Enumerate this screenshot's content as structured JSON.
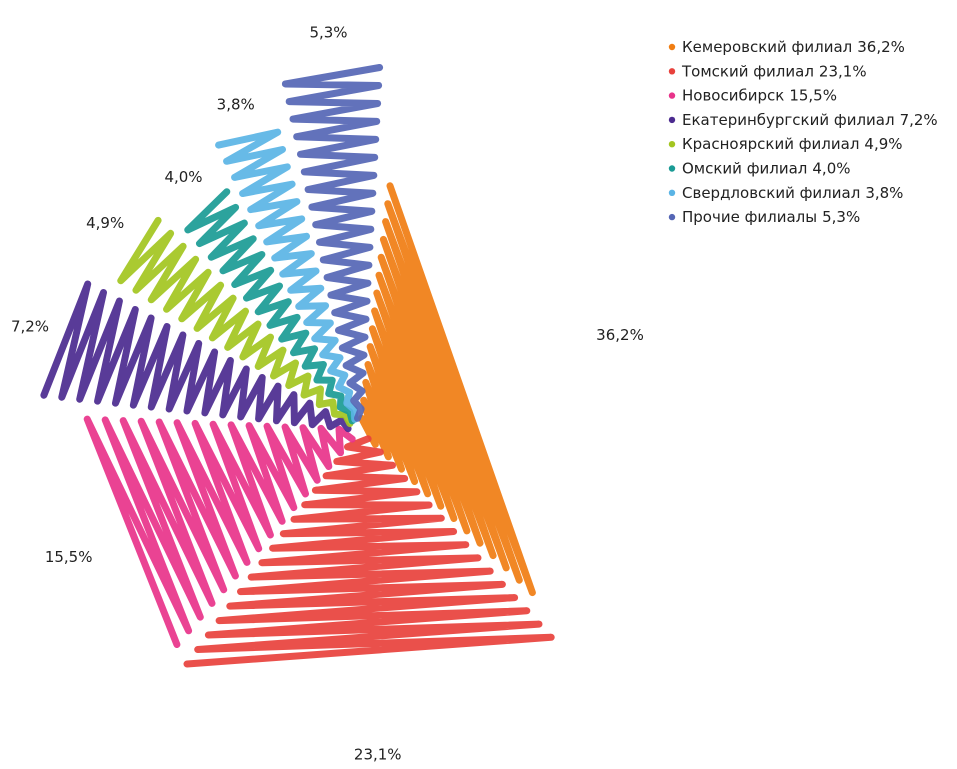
{
  "chart_data": {
    "type": "pie",
    "categories": [
      "Кемеровский филиал",
      "Томский филиал",
      "Новосибирск",
      "Екатеринбургский филиал",
      "Красноярский филиал",
      "Омский филиал",
      "Свердловский филиал",
      "Прочие филиалы"
    ],
    "values": [
      36.2,
      23.1,
      15.5,
      7.2,
      4.9,
      4.0,
      3.8,
      5.3
    ],
    "value_labels": [
      "36,2%",
      "23,1%",
      "15,5%",
      "7,2%",
      "4,9%",
      "4,0%",
      "3,8%",
      "5,3%"
    ],
    "colors": [
      "#f07d12",
      "#e8413c",
      "#e8338a",
      "#4b2a8f",
      "#a3c520",
      "#1a9b95",
      "#5ab4e5",
      "#5566b5"
    ],
    "legend": "top-right"
  }
}
